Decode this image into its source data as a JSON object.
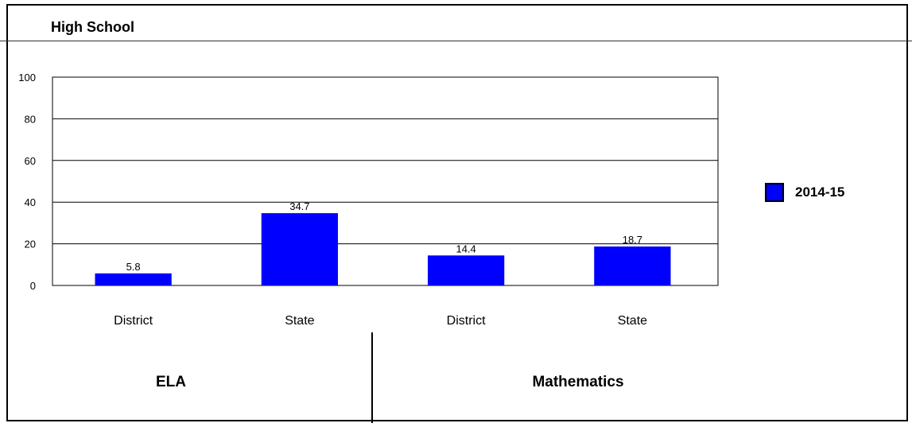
{
  "chart_data": {
    "type": "bar",
    "title": "High School",
    "categories": [
      "District",
      "State",
      "District",
      "State"
    ],
    "groups": [
      {
        "label": "ELA",
        "categories": [
          "District",
          "State"
        ]
      },
      {
        "label": "Mathematics",
        "categories": [
          "District",
          "State"
        ]
      }
    ],
    "series": [
      {
        "name": "2014-15",
        "values": [
          5.8,
          34.7,
          14.4,
          18.7
        ],
        "color": "#0000ff"
      }
    ],
    "data_labels": [
      "5.8",
      "34.7",
      "14.4",
      "18.7"
    ],
    "ylim": [
      0,
      100
    ],
    "yticks": [
      0,
      20,
      40,
      60,
      80,
      100
    ],
    "grid": true,
    "legend_position": "right"
  }
}
